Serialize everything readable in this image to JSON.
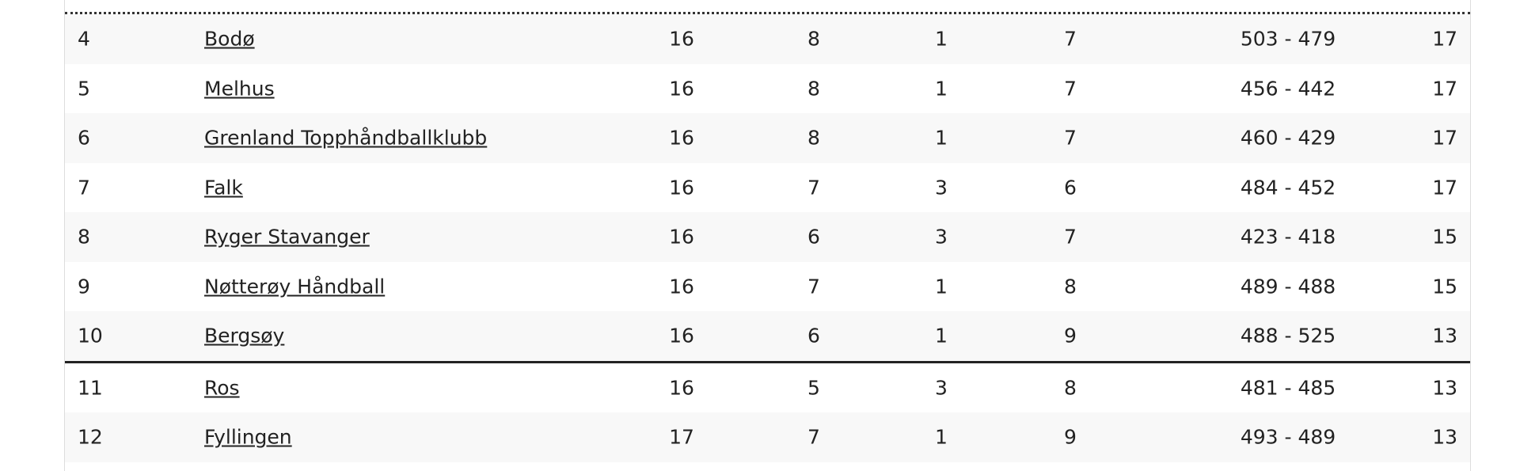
{
  "table": {
    "rows": [
      [
        "4",
        "Bodø",
        "16",
        "8",
        "1",
        "7",
        "503 - 479",
        "17"
      ],
      [
        "5",
        "Melhus",
        "16",
        "8",
        "1",
        "7",
        "456 - 442",
        "17"
      ],
      [
        "6",
        "Grenland Topphåndballklubb",
        "16",
        "8",
        "1",
        "7",
        "460 - 429",
        "17"
      ],
      [
        "7",
        "Falk",
        "16",
        "7",
        "3",
        "6",
        "484 - 452",
        "17"
      ],
      [
        "8",
        "Ryger Stavanger",
        "16",
        "6",
        "3",
        "7",
        "423 - 418",
        "15"
      ],
      [
        "9",
        "Nøtterøy Håndball",
        "16",
        "7",
        "1",
        "8",
        "489 - 488",
        "15"
      ],
      [
        "10",
        "Bergsøy",
        "16",
        "6",
        "1",
        "9",
        "488 - 525",
        "13"
      ],
      [
        "11",
        "Ros",
        "16",
        "5",
        "3",
        "8",
        "481 - 485",
        "13"
      ],
      [
        "12",
        "Fyllingen",
        "17",
        "7",
        "1",
        "9",
        "493 - 489",
        "13"
      ]
    ]
  }
}
